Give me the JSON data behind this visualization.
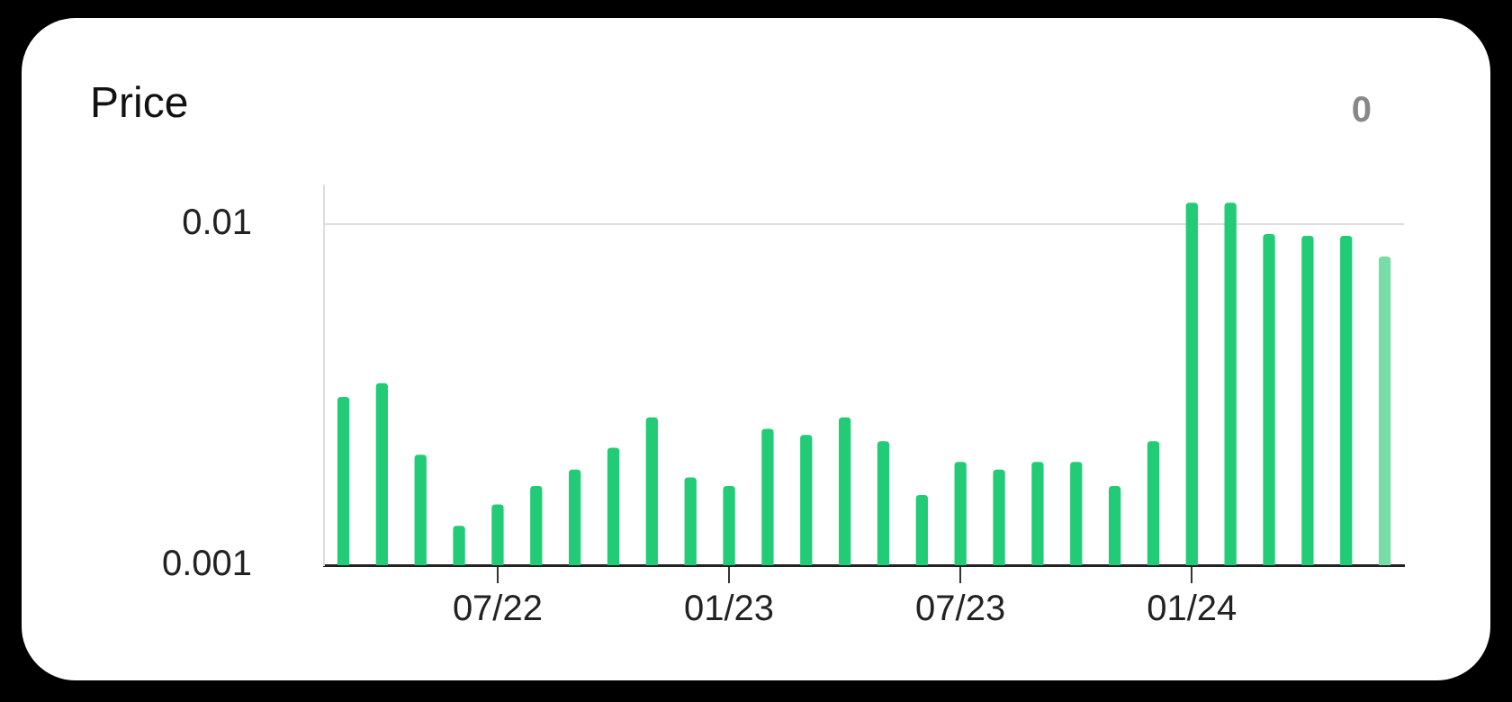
{
  "chart_data": {
    "type": "bar",
    "title": "Price",
    "categories": [
      null,
      null,
      null,
      null,
      "07/22",
      null,
      null,
      null,
      null,
      null,
      "01/23",
      null,
      null,
      null,
      null,
      null,
      "07/23",
      null,
      null,
      null,
      null,
      null,
      "01/24",
      null,
      null,
      null,
      null,
      null
    ],
    "values": [
      0.0031,
      0.0034,
      0.0021,
      0.0013,
      0.0015,
      0.0017,
      0.0019,
      0.0022,
      0.0027,
      0.0018,
      0.0017,
      0.0025,
      0.0024,
      0.0027,
      0.0023,
      0.0016,
      0.002,
      0.0019,
      0.002,
      0.002,
      0.0017,
      0.0023,
      0.0115,
      0.0115,
      0.0093,
      0.0092,
      0.0092,
      0.008
    ],
    "colors": [
      "#22cc77",
      "#22cc77",
      "#22cc77",
      "#22cc77",
      "#22cc77",
      "#22cc77",
      "#22cc77",
      "#22cc77",
      "#22cc77",
      "#22cc77",
      "#22cc77",
      "#22cc77",
      "#22cc77",
      "#22cc77",
      "#22cc77",
      "#22cc77",
      "#22cc77",
      "#22cc77",
      "#22cc77",
      "#22cc77",
      "#22cc77",
      "#22cc77",
      "#22cc77",
      "#22cc77",
      "#22cc77",
      "#22cc77",
      "#22cc77",
      "#77dda5"
    ],
    "log": "y",
    "ylim": [
      0.001,
      0.013
    ],
    "yticks": [
      0.001,
      0.01
    ],
    "grid": "y",
    "legend": false,
    "annotations": [
      "0"
    ]
  }
}
